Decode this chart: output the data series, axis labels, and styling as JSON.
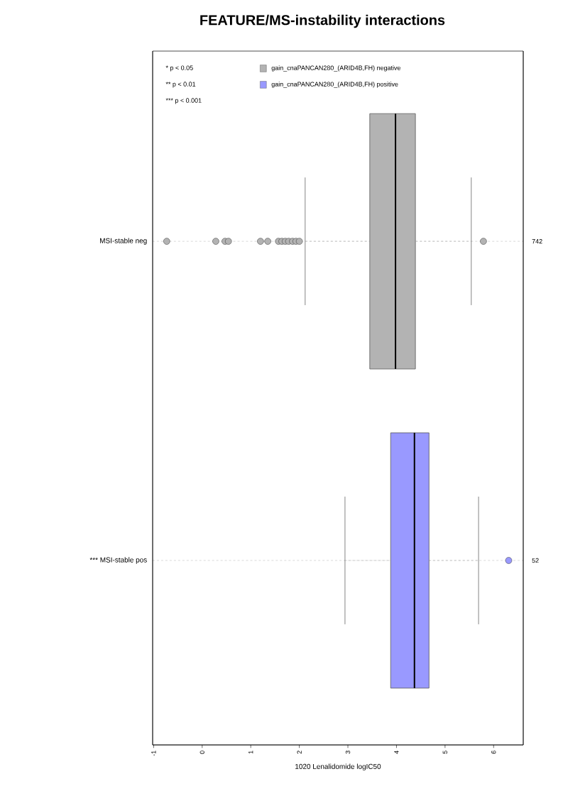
{
  "chart_data": {
    "type": "box",
    "title": "FEATURE/MS-instability interactions",
    "xlabel": "1020 Lenalidomide logIC50",
    "orientation": "horizontal",
    "categories": [
      "MSI-stable neg",
      "*** MSI-stable pos"
    ],
    "series": [
      {
        "name": "gain_cnaPANCAN280_(ARID4B,FH) negative",
        "color": "#b3b3b3",
        "boxes": [
          {
            "low": 2.12,
            "q1": 3.45,
            "median": 3.98,
            "q3": 4.39,
            "high": 5.54,
            "outliers": [
              -0.73,
              0.28,
              0.47,
              0.54,
              1.2,
              1.35,
              1.57,
              1.64,
              1.71,
              1.78,
              1.86,
              1.93,
              2.0,
              5.79
            ]
          },
          null
        ]
      },
      {
        "name": "gain_cnaPANCAN280_(ARID4B,FH) positive",
        "color": "#9999ff",
        "boxes": [
          null,
          {
            "low": 2.94,
            "q1": 3.88,
            "median": 4.37,
            "q3": 4.67,
            "high": 5.69,
            "outliers": [
              6.31
            ]
          }
        ]
      }
    ],
    "xlim": [
      -1.02,
      6.61
    ],
    "xticks": [
      -1,
      0,
      1,
      2,
      3,
      4,
      5,
      6
    ],
    "grid": "y",
    "legend": "top left",
    "annotations": [
      "* p < 0.05",
      "** p < 0.01",
      "*** p < 0.001",
      "742",
      "52"
    ]
  }
}
